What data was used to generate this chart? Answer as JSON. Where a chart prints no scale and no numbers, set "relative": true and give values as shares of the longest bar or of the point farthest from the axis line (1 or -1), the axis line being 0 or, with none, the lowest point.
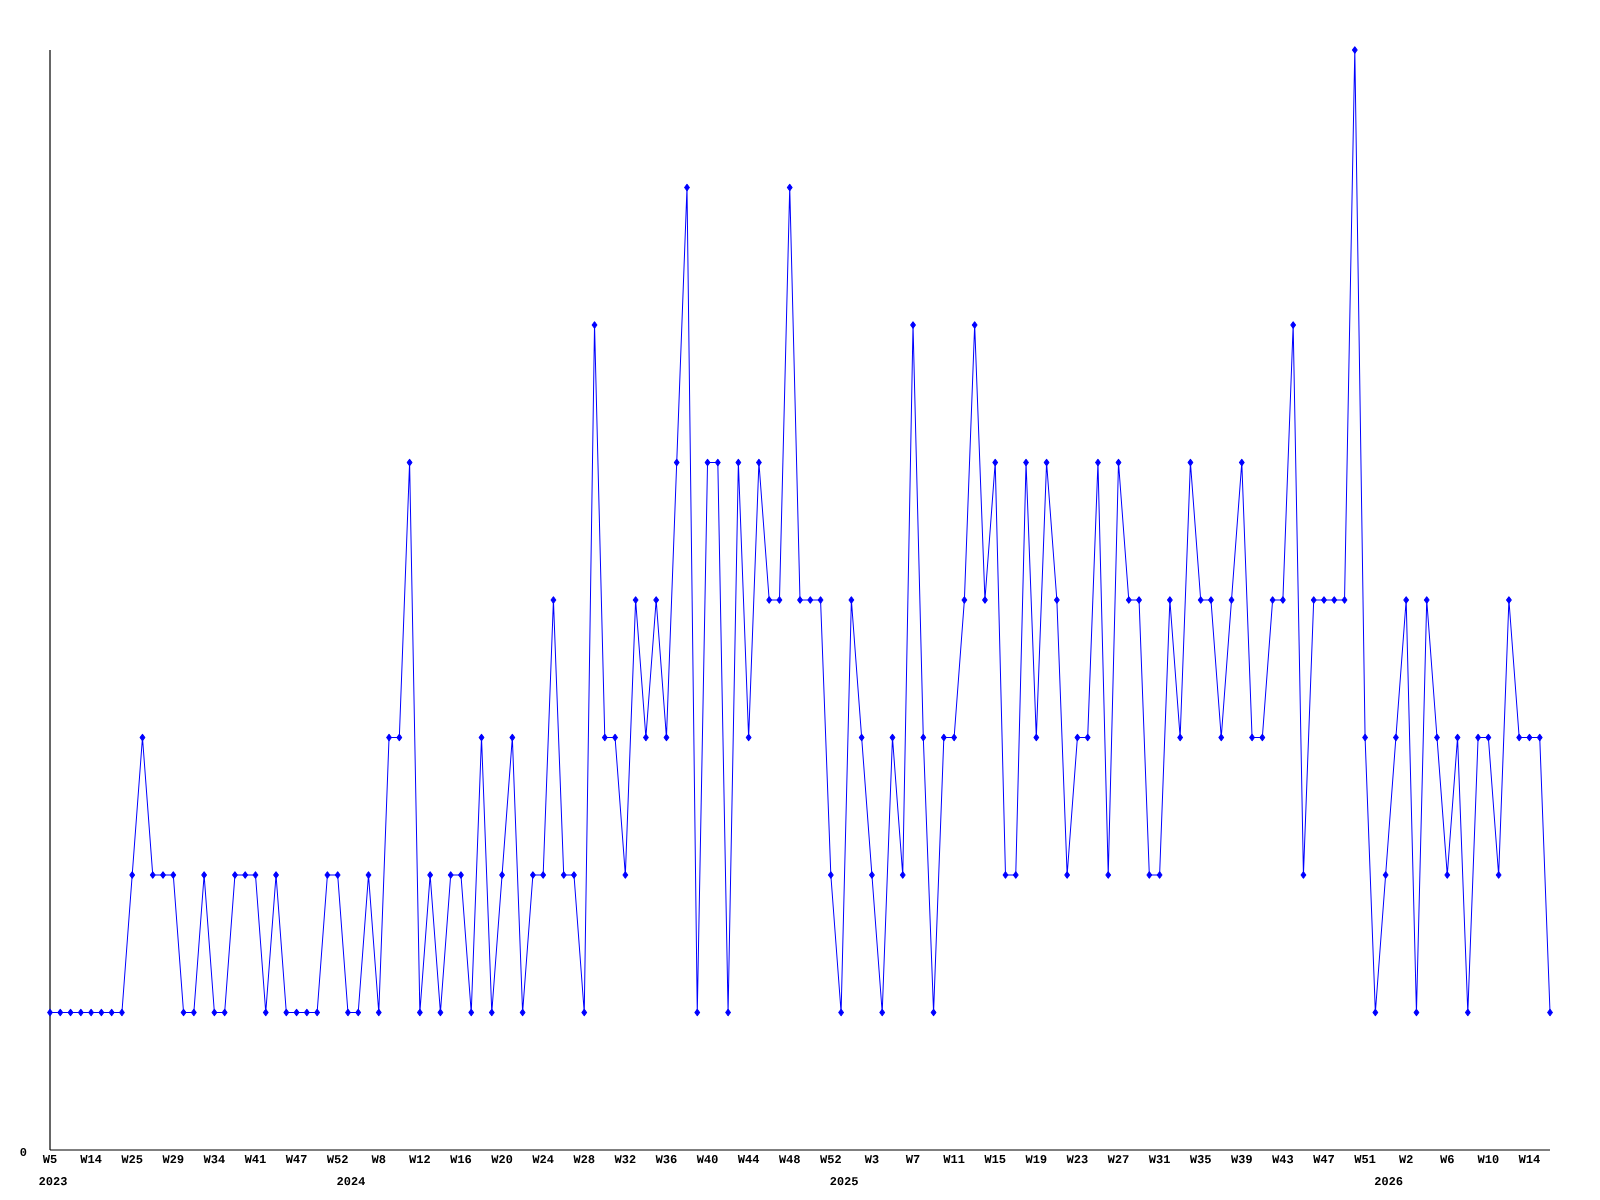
{
  "chart_data": {
    "type": "line",
    "relative": true,
    "color": "#0000ff",
    "marker": "diamond",
    "categories": [
      "W5",
      null,
      null,
      null,
      "W14",
      null,
      null,
      null,
      "W25",
      null,
      null,
      null,
      "W29",
      null,
      null,
      null,
      "W34",
      null,
      null,
      null,
      "W41",
      null,
      null,
      null,
      "W47",
      null,
      null,
      null,
      "W52",
      null,
      null,
      null,
      "W8",
      null,
      null,
      null,
      "W12",
      null,
      null,
      null,
      "W16",
      null,
      null,
      null,
      "W20",
      null,
      null,
      null,
      "W24",
      null,
      null,
      null,
      "W28",
      null,
      null,
      null,
      "W32",
      null,
      null,
      null,
      "W36",
      null,
      null,
      null,
      "W40",
      null,
      null,
      null,
      "W44",
      null,
      null,
      null,
      "W48",
      null,
      null,
      null,
      "W52",
      null,
      null,
      null,
      "W3",
      null,
      null,
      null,
      "W7",
      null,
      null,
      null,
      "W11",
      null,
      null,
      null,
      "W15",
      null,
      null,
      null,
      "W19",
      null,
      null,
      null,
      "W23",
      null,
      null,
      null,
      "W27",
      null,
      null,
      null,
      "W31",
      null,
      null,
      null,
      "W35",
      null,
      null,
      null,
      "W39",
      null,
      null,
      null,
      "W43",
      null,
      null,
      null,
      "W47",
      null,
      null,
      null,
      "W51",
      null,
      null,
      null,
      "W2",
      null,
      null,
      null,
      "W6",
      null,
      null,
      null,
      "W10",
      null,
      null,
      null,
      "W14",
      null,
      null
    ],
    "values": [
      0.125,
      0.125,
      0.125,
      0.125,
      0.125,
      0.125,
      0.125,
      0.125,
      0.25,
      0.375,
      0.25,
      0.25,
      0.25,
      0.125,
      0.125,
      0.25,
      0.125,
      0.125,
      0.25,
      0.25,
      0.25,
      0.125,
      0.25,
      0.125,
      0.125,
      0.125,
      0.125,
      0.25,
      0.25,
      0.125,
      0.125,
      0.25,
      0.125,
      0.375,
      0.375,
      0.625,
      0.125,
      0.25,
      0.125,
      0.25,
      0.25,
      0.125,
      0.375,
      0.125,
      0.25,
      0.375,
      0.125,
      0.25,
      0.25,
      0.5,
      0.25,
      0.25,
      0.125,
      0.75,
      0.375,
      0.375,
      0.25,
      0.5,
      0.375,
      0.5,
      0.375,
      0.625,
      0.875,
      0.125,
      0.625,
      0.625,
      0.125,
      0.625,
      0.375,
      0.625,
      0.5,
      0.5,
      0.875,
      0.5,
      0.5,
      0.5,
      0.25,
      0.125,
      0.5,
      0.375,
      0.25,
      0.125,
      0.375,
      0.25,
      0.75,
      0.375,
      0.125,
      0.375,
      0.375,
      0.5,
      0.75,
      0.5,
      0.625,
      0.25,
      0.25,
      0.625,
      0.375,
      0.625,
      0.5,
      0.25,
      0.375,
      0.375,
      0.625,
      0.25,
      0.625,
      0.5,
      0.5,
      0.25,
      0.25,
      0.5,
      0.375,
      0.625,
      0.5,
      0.5,
      0.375,
      0.5,
      0.625,
      0.375,
      0.375,
      0.5,
      0.5,
      0.75,
      0.25,
      0.5,
      0.5,
      0.5,
      0.5,
      1,
      0.375,
      0.125,
      0.25,
      0.375,
      0.5,
      0.125,
      0.5,
      0.375,
      0.25,
      0.375,
      0.125,
      0.375,
      0.375,
      0.25,
      0.5,
      0.375,
      0.375,
      0.375,
      0.125
    ],
    "annotations": [
      "0",
      "2023",
      "2024",
      "2025",
      "2026"
    ]
  }
}
